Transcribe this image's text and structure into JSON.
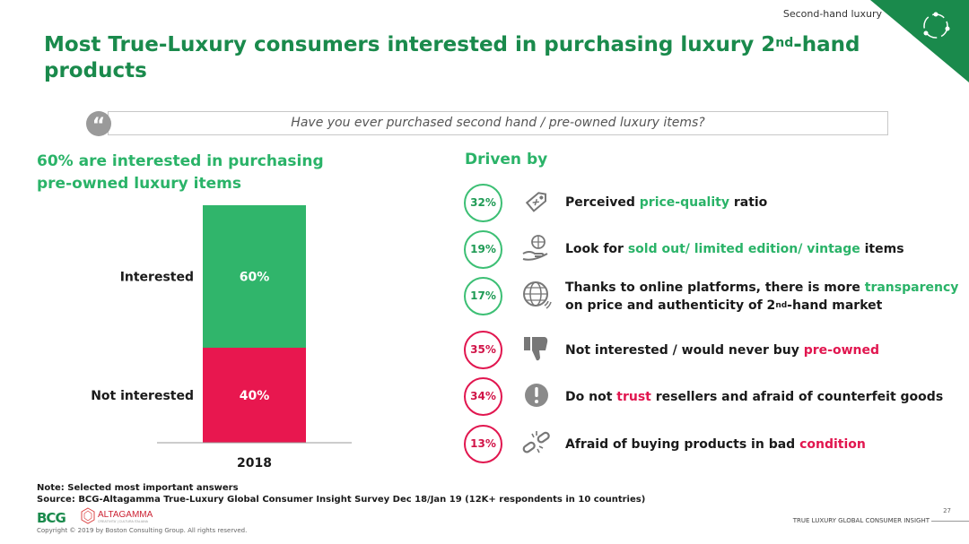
{
  "header": {
    "section": "Second-hand luxury"
  },
  "title": {
    "line_a": "Most True-Luxury consumers interested in purchasing luxury 2",
    "sup": "nd",
    "line_b": "-hand products"
  },
  "question": "Have you ever purchased second hand / pre-owned luxury items?",
  "quote_mark": "“",
  "left_heading": "60% are interested in purchasing pre-owned luxury items",
  "driven_heading": "Driven by",
  "chart_data": {
    "type": "bar",
    "stacked": true,
    "categories": [
      "2018"
    ],
    "series": [
      {
        "name": "Not interested",
        "values": [
          40
        ],
        "label": "40%",
        "color": "#e8174f"
      },
      {
        "name": "Interested",
        "values": [
          60
        ],
        "label": "60%",
        "color": "#30b56b"
      }
    ],
    "ylim": [
      0,
      100
    ],
    "xlabel": "",
    "ylabel": ""
  },
  "drivers": [
    {
      "pct": "32%",
      "tone": "g",
      "icon": "price-tag-icon",
      "pre": "Perceived ",
      "hl": "price-quality",
      "post": " ratio"
    },
    {
      "pct": "19%",
      "tone": "g",
      "icon": "hand-globe-icon",
      "pre": "Look for ",
      "hl": "sold out/ limited edition/ vintage",
      "post": " items"
    },
    {
      "pct": "17%",
      "tone": "g",
      "icon": "globe-icon",
      "pre": "Thanks to online platforms, there is more ",
      "hl": "transparency",
      "post": " on price and authenticity of 2",
      "sup": "nd",
      "post2": "-hand market"
    },
    {
      "pct": "35%",
      "tone": "r",
      "icon": "thumbs-down-icon",
      "pre": "Not interested / would never buy ",
      "hl": "pre-owned",
      "post": ""
    },
    {
      "pct": "34%",
      "tone": "r",
      "icon": "exclamation-icon",
      "pre": "Do not ",
      "hl": "trust",
      "post": " resellers and afraid of counterfeit goods"
    },
    {
      "pct": "13%",
      "tone": "r",
      "icon": "broken-chain-icon",
      "pre": "Afraid of buying products in bad ",
      "hl": "condition",
      "post": ""
    }
  ],
  "note": "Note: Selected most important answers",
  "source": "Source: BCG-Altagamma True-Luxury Global Consumer Insight Survey Dec 18/Jan 19 (12K+ respondents in 10 countries)",
  "copyright": "Copyright © 2019 by Boston Consulting Group. All rights reserved.",
  "footer_right": "TRUE LUXURY GLOBAL CONSUMER INSIGHT",
  "page_number": "27",
  "logos": {
    "bcg": "BCG",
    "altagamma": "ALTAGAMMA",
    "altagamma_sub": "CREATIVITA' | CULTURA ITALIANA"
  },
  "colors": {
    "green": "#2ab368",
    "dark_green": "#1a8a4c",
    "red": "#e1164f"
  }
}
